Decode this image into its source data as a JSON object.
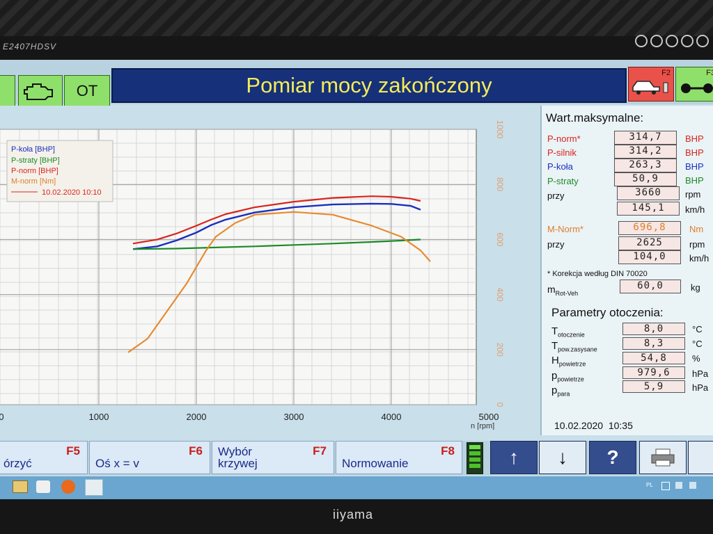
{
  "monitor": {
    "model": "E2407HDSV",
    "brand": "iiyama"
  },
  "toolbar": {
    "engine_label": "",
    "ot_label": "OT",
    "title": "Pomiar mocy zakończony",
    "f2_key": "F2",
    "f3_key": "F3"
  },
  "legend": {
    "items": [
      "P-koła [BHP]",
      "P-straty [BHP]",
      "P-norm [BHP]",
      "M-norm [Nm]"
    ],
    "date": "10.02.2020 10:10"
  },
  "colors": {
    "p_norm": "#d8251e",
    "p_kola": "#1a2fc0",
    "p_straty": "#1c8a28",
    "m_norm": "#e88a30"
  },
  "chart_data": {
    "type": "line",
    "xlabel": "n [rpm]",
    "xlim": [
      0,
      5000
    ],
    "x_ticks": [
      "0",
      "1000",
      "2000",
      "3000",
      "4000",
      "5000"
    ],
    "y2_ticks": [
      "0",
      "200",
      "400",
      "600",
      "800",
      "1000"
    ],
    "y2lim": [
      0,
      1000
    ],
    "series": [
      {
        "name": "P-norm [BHP]",
        "x": [
          1350,
          1600,
          1800,
          2000,
          2150,
          2300,
          2600,
          3000,
          3400,
          3800,
          4000,
          4200,
          4300
        ],
        "y": [
          585,
          600,
          622,
          650,
          672,
          692,
          717,
          737,
          751,
          757,
          755,
          748,
          740
        ]
      },
      {
        "name": "P-koła [BHP]",
        "x": [
          1350,
          1600,
          1800,
          2000,
          2150,
          2300,
          2600,
          3000,
          3400,
          3800,
          4000,
          4200,
          4300
        ],
        "y": [
          565,
          575,
          597,
          625,
          652,
          672,
          698,
          717,
          727,
          730,
          729,
          722,
          708
        ]
      },
      {
        "name": "P-straty [BHP]",
        "x": [
          1350,
          1800,
          2200,
          2600,
          3000,
          3400,
          3800,
          4100,
          4300
        ],
        "y": [
          565,
          567,
          571,
          575,
          580,
          585,
          591,
          596,
          600
        ]
      },
      {
        "name": "M-norm [Nm]",
        "x": [
          1300,
          1500,
          1700,
          1900,
          2100,
          2200,
          2400,
          2600,
          3000,
          3400,
          3800,
          4100,
          4300,
          4400
        ],
        "y": [
          190,
          240,
          340,
          440,
          560,
          610,
          660,
          690,
          700,
          690,
          650,
          610,
          560,
          520
        ]
      }
    ]
  },
  "max_values": {
    "title": "Wart.maksymalne:",
    "p_norm": {
      "label": "P-norm*",
      "value": "314,7",
      "unit": "BHP"
    },
    "p_silnik": {
      "label": "P-silnik",
      "value": "314,2",
      "unit": "BHP"
    },
    "p_kola": {
      "label": "P-koła",
      "value": "263,3",
      "unit": "BHP"
    },
    "p_straty": {
      "label": "P-straty",
      "value": "50,9",
      "unit": "BHP"
    },
    "przy_label": "przy",
    "rpm_value": "3660",
    "rpm_unit": "rpm",
    "speed_value": "145,1",
    "speed_unit": "km/h",
    "m_norm": {
      "label": "M-Norm*",
      "value": "696,8",
      "unit": "Nm"
    },
    "m_przy_label": "przy",
    "m_rpm_value": "2625",
    "m_rpm_unit": "rpm",
    "m_speed_value": "104,0",
    "m_speed_unit": "km/h",
    "correction": "* Korekcja według DIN 70020",
    "mrot_label": "m",
    "mrot_sub": "Rot-Veh",
    "mrot_value": "60,0",
    "mrot_unit": "kg"
  },
  "env": {
    "title": "Parametry otoczenia:",
    "t_otoczenie": {
      "sym": "T",
      "sub": "otoczenie",
      "value": "8,0",
      "unit": "°C"
    },
    "t_pow": {
      "sym": "T",
      "sub": "pow.zasysane",
      "value": "8,3",
      "unit": "°C"
    },
    "h_pow": {
      "sym": "H",
      "sub": "powietrze",
      "value": "54,8",
      "unit": "%"
    },
    "p_pow": {
      "sym": "p",
      "sub": "powietrze",
      "value": "979,6",
      "unit": "hPa"
    },
    "p_para": {
      "sym": "p",
      "sub": "para",
      "value": "5,9",
      "unit": "hPa"
    },
    "datetime": "10.02.2020  10:35"
  },
  "fkeys": {
    "f5": {
      "label": "órzyć",
      "key": "F5"
    },
    "f6": {
      "label": "Oś x = v",
      "key": "F6"
    },
    "f7": {
      "label": "Wybór krzywej",
      "key": "F7"
    },
    "f8": {
      "label": "Normowanie",
      "key": "F8"
    },
    "up": "↑",
    "down": "↓",
    "help": "?"
  },
  "taskbar": {
    "lang": "PL"
  }
}
